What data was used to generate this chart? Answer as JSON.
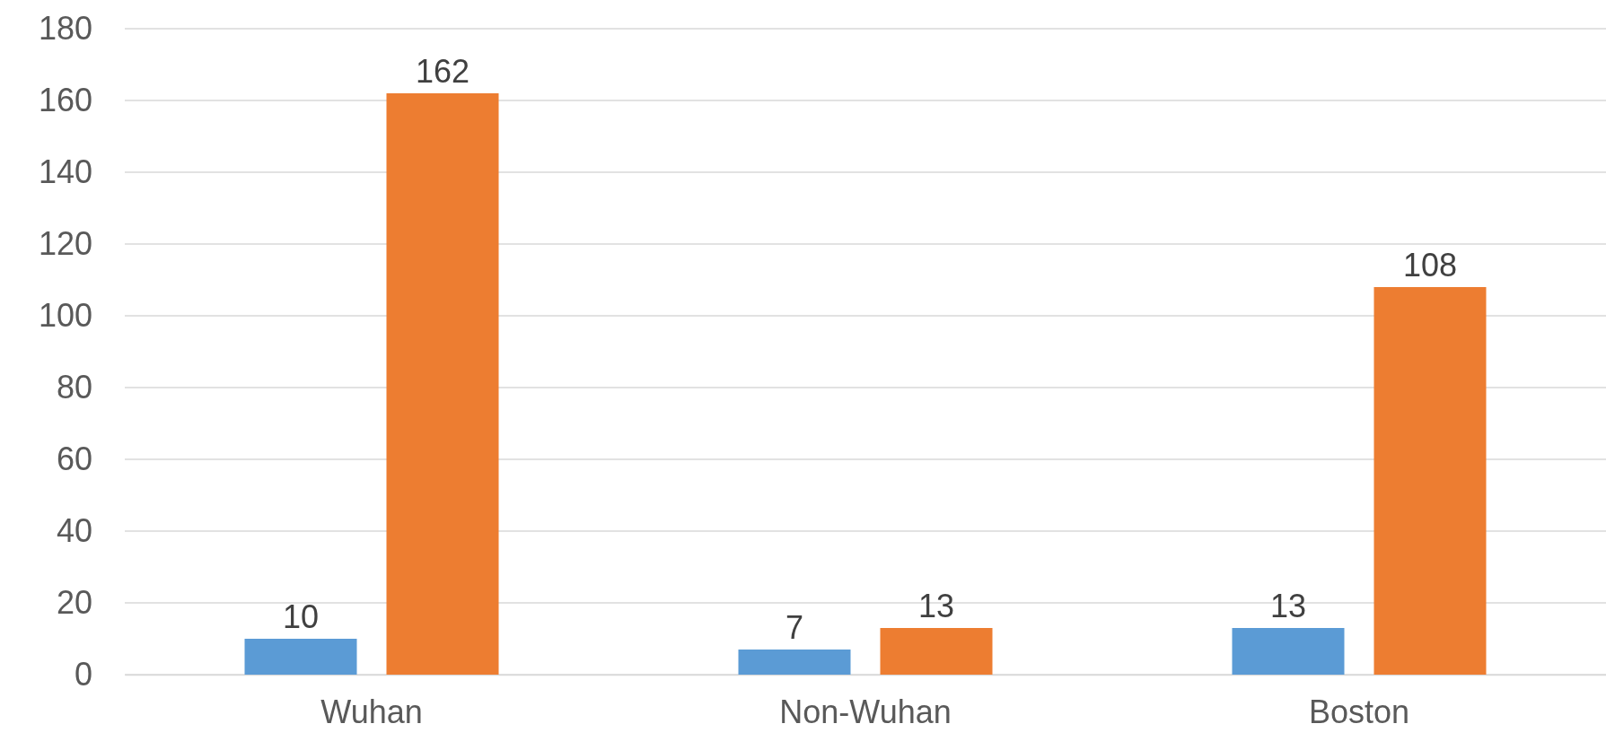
{
  "chart_data": {
    "type": "bar",
    "categories": [
      "Wuhan",
      "Non-Wuhan",
      "Boston"
    ],
    "series": [
      {
        "color": "#5b9bd5",
        "values": [
          10,
          7,
          13
        ]
      },
      {
        "color": "#ed7d31",
        "values": [
          162,
          13,
          108
        ]
      }
    ],
    "ylim": [
      0,
      180
    ],
    "yticks": [
      0,
      20,
      40,
      60,
      80,
      100,
      120,
      140,
      160,
      180
    ],
    "grid": "y",
    "data_labels": true
  }
}
